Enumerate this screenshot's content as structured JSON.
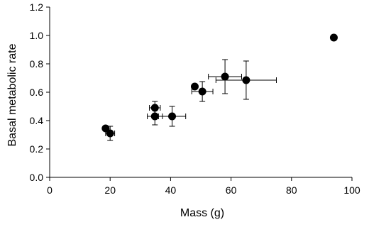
{
  "chart_data": {
    "type": "scatter",
    "xlabel": "Mass (g)",
    "ylabel": "Basal metabolic rate",
    "xlim": [
      0,
      100
    ],
    "ylim": [
      0,
      1.2
    ],
    "x_ticks": [
      0,
      20,
      40,
      60,
      80,
      100
    ],
    "y_ticks": [
      0.0,
      0.2,
      0.4,
      0.6,
      0.8,
      1.0,
      1.2
    ],
    "x_tick_labels": [
      "0",
      "20",
      "40",
      "60",
      "80",
      "100"
    ],
    "y_tick_labels": [
      "0.0",
      "0.2",
      "0.4",
      "0.6",
      "0.8",
      "1.0",
      "1.2"
    ],
    "grid": false,
    "points": [
      {
        "x": 18.5,
        "y": 0.345
      },
      {
        "x": 20.0,
        "y": 0.31,
        "yerr": 0.05,
        "xerr": 1.5
      },
      {
        "x": 34.8,
        "y": 0.49,
        "yerr": 0.045,
        "xerr": 1.8
      },
      {
        "x": 34.8,
        "y": 0.43,
        "yerr": 0.06,
        "xerr": 2.5
      },
      {
        "x": 40.5,
        "y": 0.43,
        "yerr": 0.07,
        "xerr": 4.5
      },
      {
        "x": 48.0,
        "y": 0.64
      },
      {
        "x": 50.5,
        "y": 0.605,
        "yerr": 0.07,
        "xerr": 3.5
      },
      {
        "x": 58.0,
        "y": 0.71,
        "yerr": 0.12,
        "xerr": 5.5
      },
      {
        "x": 65.0,
        "y": 0.685,
        "yerr": 0.135,
        "xerr": 10.0
      },
      {
        "x": 94.0,
        "y": 0.985
      }
    ]
  }
}
